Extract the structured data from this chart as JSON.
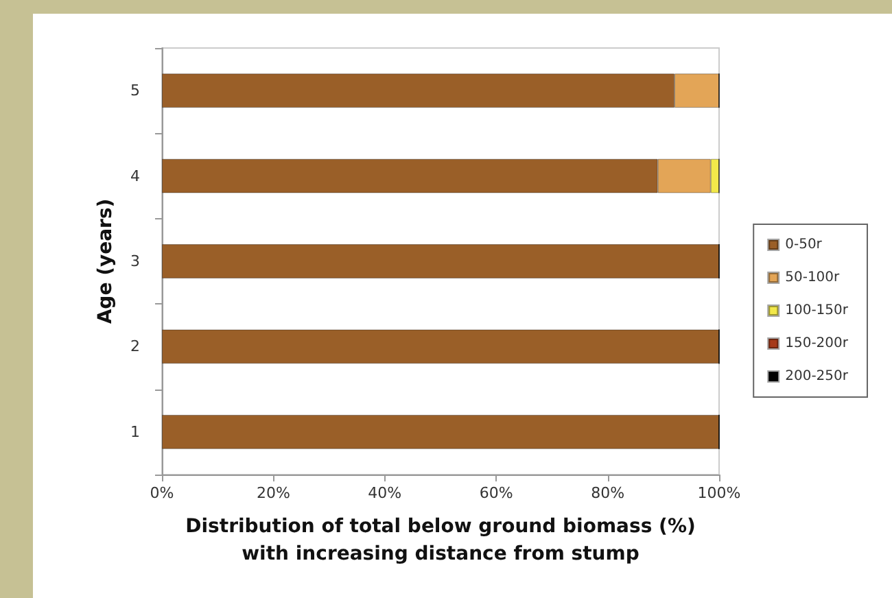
{
  "chart_data": {
    "type": "bar",
    "orientation": "horizontal",
    "stacked": true,
    "xlabel": "Distribution of total below ground biomass (%)\nwith increasing distance from stump",
    "ylabel": "Age (years)",
    "categories": [
      "5",
      "4",
      "3",
      "2",
      "1"
    ],
    "series": [
      {
        "name": "0-50r",
        "color": "#9a5f28",
        "values": [
          92,
          89,
          100,
          100,
          100
        ]
      },
      {
        "name": "50-100r",
        "color": "#e3a557",
        "values": [
          8,
          9.5,
          0,
          0,
          0
        ]
      },
      {
        "name": "100-150r",
        "color": "#f2e84a",
        "values": [
          0,
          1.5,
          0,
          0,
          0
        ]
      },
      {
        "name": "150-200r",
        "color": "#a63a1a",
        "values": [
          0,
          0,
          0,
          0,
          0
        ]
      },
      {
        "name": "200-250r",
        "color": "#000000",
        "values": [
          0,
          0,
          0,
          0,
          0
        ]
      }
    ],
    "xlim": [
      0,
      100
    ],
    "xticks": [
      {
        "value": 0,
        "label": "0%"
      },
      {
        "value": 20,
        "label": "20%"
      },
      {
        "value": 40,
        "label": "40%"
      },
      {
        "value": 60,
        "label": "60%"
      },
      {
        "value": 80,
        "label": "80%"
      },
      {
        "value": 100,
        "label": "100%"
      }
    ],
    "grid": false,
    "legend": "right"
  }
}
